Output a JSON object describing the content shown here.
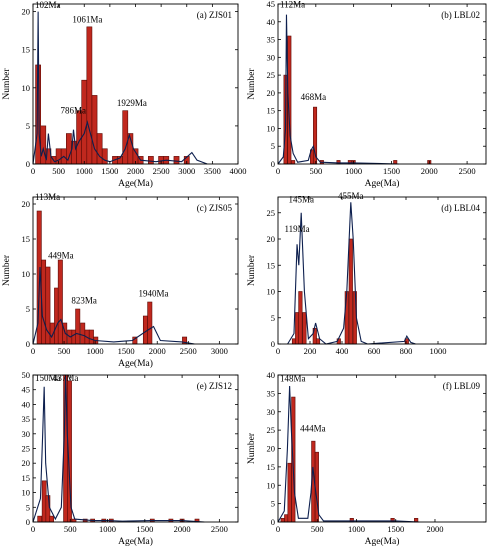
{
  "figure": {
    "bar_color": "#c0281e",
    "bar_edge": "#5a0a06",
    "curve_color": "#0d1f4e"
  },
  "chart_data": [
    {
      "type": "bar",
      "panel_label": "(a)  ZJS01",
      "xlabel": "Age(Ma)",
      "ylabel": "Number",
      "xlim": [
        0,
        4000
      ],
      "ylim": [
        0,
        21
      ],
      "xticks": [
        0,
        500,
        1000,
        1500,
        2000,
        2500,
        3000,
        3500,
        4000
      ],
      "yticks": [
        0,
        5,
        10,
        15,
        20
      ],
      "bin_width": 100,
      "bars": [
        {
          "x": 100,
          "v": 13
        },
        {
          "x": 200,
          "v": 5
        },
        {
          "x": 300,
          "v": 2
        },
        {
          "x": 400,
          "v": 1
        },
        {
          "x": 500,
          "v": 2
        },
        {
          "x": 600,
          "v": 2
        },
        {
          "x": 700,
          "v": 4
        },
        {
          "x": 800,
          "v": 3
        },
        {
          "x": 900,
          "v": 7
        },
        {
          "x": 1000,
          "v": 11
        },
        {
          "x": 1100,
          "v": 18
        },
        {
          "x": 1200,
          "v": 9
        },
        {
          "x": 1300,
          "v": 4
        },
        {
          "x": 1400,
          "v": 2
        },
        {
          "x": 1600,
          "v": 1
        },
        {
          "x": 1700,
          "v": 1
        },
        {
          "x": 1800,
          "v": 7
        },
        {
          "x": 1900,
          "v": 4
        },
        {
          "x": 2000,
          "v": 2
        },
        {
          "x": 2100,
          "v": 1
        },
        {
          "x": 2300,
          "v": 1
        },
        {
          "x": 2500,
          "v": 1
        },
        {
          "x": 2600,
          "v": 1
        },
        {
          "x": 2800,
          "v": 1
        },
        {
          "x": 3000,
          "v": 1
        }
      ],
      "curve": [
        [
          0,
          0
        ],
        [
          80,
          4
        ],
        [
          100,
          20
        ],
        [
          120,
          4
        ],
        [
          160,
          1
        ],
        [
          200,
          2
        ],
        [
          260,
          0.5
        ],
        [
          300,
          4
        ],
        [
          350,
          1
        ],
        [
          420,
          0.3
        ],
        [
          500,
          0.5
        ],
        [
          600,
          1
        ],
        [
          680,
          0.5
        ],
        [
          760,
          2
        ],
        [
          790,
          4.5
        ],
        [
          830,
          2
        ],
        [
          900,
          3
        ],
        [
          1000,
          4
        ],
        [
          1060,
          5.5
        ],
        [
          1120,
          4
        ],
        [
          1200,
          2
        ],
        [
          1300,
          1
        ],
        [
          1400,
          0.5
        ],
        [
          1500,
          0.3
        ],
        [
          1700,
          0.8
        ],
        [
          1800,
          2
        ],
        [
          1880,
          3.8
        ],
        [
          1960,
          2
        ],
        [
          2100,
          0.5
        ],
        [
          2400,
          0.3
        ],
        [
          2600,
          0.5
        ],
        [
          2900,
          0.3
        ],
        [
          3100,
          1.5
        ],
        [
          3200,
          0.5
        ],
        [
          3400,
          0
        ]
      ],
      "annotations": [
        {
          "text": "102Ma",
          "x": 102,
          "y": 20.5
        },
        {
          "text": "786Ma",
          "x": 786,
          "y": 6.6
        },
        {
          "text": "1061Ma",
          "x": 1061,
          "y": 18.6
        },
        {
          "text": "1929Ma",
          "x": 1929,
          "y": 7.6
        }
      ]
    },
    {
      "type": "bar",
      "panel_label": "(b)  LBL02",
      "xlabel": "Age(Ma)",
      "ylabel": "Number",
      "xlim": [
        0,
        2750
      ],
      "ylim": [
        0,
        45
      ],
      "xticks": [
        0,
        500,
        1000,
        1500,
        2000,
        2500
      ],
      "yticks": [
        0,
        5,
        10,
        15,
        20,
        25,
        30,
        35,
        40,
        45
      ],
      "bin_width": 45,
      "bars": [
        {
          "x": 100,
          "v": 25
        },
        {
          "x": 150,
          "v": 36
        },
        {
          "x": 200,
          "v": 1
        },
        {
          "x": 450,
          "v": 4
        },
        {
          "x": 490,
          "v": 16
        },
        {
          "x": 580,
          "v": 1
        },
        {
          "x": 800,
          "v": 1
        },
        {
          "x": 950,
          "v": 1
        },
        {
          "x": 1000,
          "v": 1
        },
        {
          "x": 1550,
          "v": 1
        },
        {
          "x": 2000,
          "v": 1
        }
      ],
      "curve": [
        [
          0,
          0
        ],
        [
          70,
          2
        ],
        [
          100,
          10
        ],
        [
          112,
          42
        ],
        [
          130,
          20
        ],
        [
          160,
          8
        ],
        [
          200,
          3
        ],
        [
          260,
          0.5
        ],
        [
          400,
          1
        ],
        [
          440,
          4
        ],
        [
          468,
          5
        ],
        [
          500,
          2
        ],
        [
          560,
          0.5
        ],
        [
          800,
          0.3
        ],
        [
          1000,
          0.3
        ],
        [
          1600,
          0
        ]
      ],
      "annotations": [
        {
          "text": "112Ma",
          "x": 112,
          "y": 44
        },
        {
          "text": "468Ma",
          "x": 468,
          "y": 18
        }
      ]
    },
    {
      "type": "bar",
      "panel_label": "(c)  ZJS05",
      "xlabel": "Age(Ma)",
      "ylabel": "Number",
      "xlim": [
        0,
        3300
      ],
      "ylim": [
        0,
        21
      ],
      "xticks": [
        0,
        500,
        1000,
        1500,
        2000,
        2500,
        3000
      ],
      "yticks": [
        0,
        5,
        10,
        15,
        20
      ],
      "bin_width": 70,
      "bars": [
        {
          "x": 100,
          "v": 19
        },
        {
          "x": 170,
          "v": 12
        },
        {
          "x": 240,
          "v": 11
        },
        {
          "x": 310,
          "v": 3
        },
        {
          "x": 380,
          "v": 8
        },
        {
          "x": 440,
          "v": 12
        },
        {
          "x": 510,
          "v": 3
        },
        {
          "x": 590,
          "v": 2
        },
        {
          "x": 660,
          "v": 2
        },
        {
          "x": 720,
          "v": 5
        },
        {
          "x": 800,
          "v": 3
        },
        {
          "x": 870,
          "v": 2
        },
        {
          "x": 940,
          "v": 2
        },
        {
          "x": 1010,
          "v": 1
        },
        {
          "x": 1640,
          "v": 1
        },
        {
          "x": 1810,
          "v": 4
        },
        {
          "x": 1880,
          "v": 6
        },
        {
          "x": 2440,
          "v": 1
        }
      ],
      "curve": [
        [
          0,
          0
        ],
        [
          80,
          3
        ],
        [
          113,
          11
        ],
        [
          150,
          4
        ],
        [
          220,
          2
        ],
        [
          300,
          1
        ],
        [
          400,
          3
        ],
        [
          449,
          3.5
        ],
        [
          520,
          1.5
        ],
        [
          600,
          1
        ],
        [
          700,
          1.5
        ],
        [
          823,
          1.2
        ],
        [
          900,
          0.8
        ],
        [
          1000,
          0.5
        ],
        [
          1300,
          0.3
        ],
        [
          1600,
          0.5
        ],
        [
          1850,
          2
        ],
        [
          1940,
          2.5
        ],
        [
          2050,
          0.5
        ],
        [
          2400,
          0.3
        ],
        [
          2600,
          0
        ]
      ],
      "annotations": [
        {
          "text": "113Ma",
          "x": 113,
          "y": 20.6
        },
        {
          "text": "449Ma",
          "x": 449,
          "y": 12.2
        },
        {
          "text": "823Ma",
          "x": 823,
          "y": 5.8
        },
        {
          "text": "1940Ma",
          "x": 1940,
          "y": 6.8
        }
      ]
    },
    {
      "type": "bar",
      "panel_label": "(d)  LBL04",
      "xlabel": "",
      "ylabel": "Number",
      "xlim": [
        0,
        1300
      ],
      "ylim": [
        0,
        28
      ],
      "xticks": [
        0,
        200,
        400,
        600,
        800,
        1000
      ],
      "yticks": [
        0,
        5,
        10,
        15,
        20,
        25
      ],
      "bin_width": 22,
      "bars": [
        {
          "x": 100,
          "v": 1
        },
        {
          "x": 120,
          "v": 6
        },
        {
          "x": 140,
          "v": 10
        },
        {
          "x": 165,
          "v": 6
        },
        {
          "x": 230,
          "v": 3
        },
        {
          "x": 250,
          "v": 1
        },
        {
          "x": 380,
          "v": 1
        },
        {
          "x": 430,
          "v": 10
        },
        {
          "x": 455,
          "v": 20
        },
        {
          "x": 480,
          "v": 10
        },
        {
          "x": 805,
          "v": 1
        }
      ],
      "curve": [
        [
          60,
          0
        ],
        [
          100,
          2
        ],
        [
          119,
          19
        ],
        [
          130,
          15
        ],
        [
          145,
          25
        ],
        [
          165,
          10
        ],
        [
          190,
          1
        ],
        [
          220,
          2
        ],
        [
          235,
          4
        ],
        [
          260,
          1
        ],
        [
          300,
          0
        ],
        [
          370,
          0.5
        ],
        [
          410,
          3
        ],
        [
          430,
          10
        ],
        [
          455,
          27
        ],
        [
          470,
          20
        ],
        [
          490,
          5
        ],
        [
          520,
          0.5
        ],
        [
          560,
          0
        ],
        [
          790,
          0.5
        ],
        [
          805,
          1.5
        ],
        [
          830,
          0.3
        ],
        [
          860,
          0
        ]
      ],
      "annotations": [
        {
          "text": "119Ma",
          "x": 119,
          "y": 21.3
        },
        {
          "text": "145Ma",
          "x": 145,
          "y": 27
        },
        {
          "text": "455Ma",
          "x": 455,
          "y": 27.6
        }
      ]
    },
    {
      "type": "bar",
      "panel_label": "(e)  ZJS12",
      "xlabel": "Age(Ma)",
      "ylabel": "",
      "xlim": [
        0,
        2750
      ],
      "ylim": [
        0,
        50
      ],
      "xticks": [
        0,
        500,
        1000,
        1500,
        2000,
        2500
      ],
      "yticks": [
        0,
        5,
        10,
        15,
        20,
        25,
        30,
        35,
        40,
        45,
        50
      ],
      "bin_width": 55,
      "bars": [
        {
          "x": 90,
          "v": 2
        },
        {
          "x": 150,
          "v": 14
        },
        {
          "x": 200,
          "v": 9
        },
        {
          "x": 250,
          "v": 2
        },
        {
          "x": 437,
          "v": 50
        },
        {
          "x": 490,
          "v": 48
        },
        {
          "x": 550,
          "v": 1
        },
        {
          "x": 700,
          "v": 1
        },
        {
          "x": 800,
          "v": 1
        },
        {
          "x": 950,
          "v": 1
        },
        {
          "x": 1050,
          "v": 1
        },
        {
          "x": 1600,
          "v": 1
        },
        {
          "x": 1850,
          "v": 1
        },
        {
          "x": 2000,
          "v": 1
        },
        {
          "x": 2200,
          "v": 1
        }
      ],
      "curve": [
        [
          0,
          0
        ],
        [
          100,
          8
        ],
        [
          130,
          30
        ],
        [
          150,
          46
        ],
        [
          170,
          20
        ],
        [
          220,
          5
        ],
        [
          300,
          1
        ],
        [
          380,
          5
        ],
        [
          420,
          30
        ],
        [
          437,
          50
        ],
        [
          460,
          30
        ],
        [
          510,
          5
        ],
        [
          560,
          1
        ],
        [
          800,
          0.5
        ],
        [
          1000,
          0.5
        ],
        [
          1200,
          0.3
        ],
        [
          1600,
          0.5
        ],
        [
          2000,
          0.5
        ],
        [
          2300,
          0
        ]
      ],
      "annotations": [
        {
          "text": "150Ma",
          "x": 150,
          "y": 48
        },
        {
          "text": "437Ma",
          "x": 437,
          "y": 48
        }
      ]
    },
    {
      "type": "bar",
      "panel_label": "(f)  LBL09",
      "xlabel": "Age(Ma)",
      "ylabel": "Number",
      "xlim": [
        0,
        2650
      ],
      "ylim": [
        0,
        40
      ],
      "xticks": [
        0,
        500,
        1000,
        1500,
        2000
      ],
      "yticks": [
        0,
        5,
        10,
        15,
        20,
        25,
        30,
        35,
        40
      ],
      "bin_width": 45,
      "bars": [
        {
          "x": 60,
          "v": 1
        },
        {
          "x": 105,
          "v": 2
        },
        {
          "x": 148,
          "v": 16
        },
        {
          "x": 195,
          "v": 34
        },
        {
          "x": 450,
          "v": 22
        },
        {
          "x": 495,
          "v": 19
        },
        {
          "x": 940,
          "v": 1
        },
        {
          "x": 1460,
          "v": 1
        },
        {
          "x": 1760,
          "v": 1
        }
      ],
      "curve": [
        [
          0,
          0
        ],
        [
          80,
          3
        ],
        [
          120,
          20
        ],
        [
          148,
          37
        ],
        [
          170,
          25
        ],
        [
          210,
          8
        ],
        [
          260,
          1
        ],
        [
          380,
          1
        ],
        [
          420,
          8
        ],
        [
          444,
          15
        ],
        [
          470,
          10
        ],
        [
          520,
          2
        ],
        [
          580,
          0.3
        ],
        [
          1000,
          0.3
        ],
        [
          1500,
          0.3
        ],
        [
          1800,
          0
        ]
      ],
      "annotations": [
        {
          "text": "148Ma",
          "x": 148,
          "y": 38.2
        },
        {
          "text": "444Ma",
          "x": 444,
          "y": 24.6
        }
      ]
    }
  ]
}
